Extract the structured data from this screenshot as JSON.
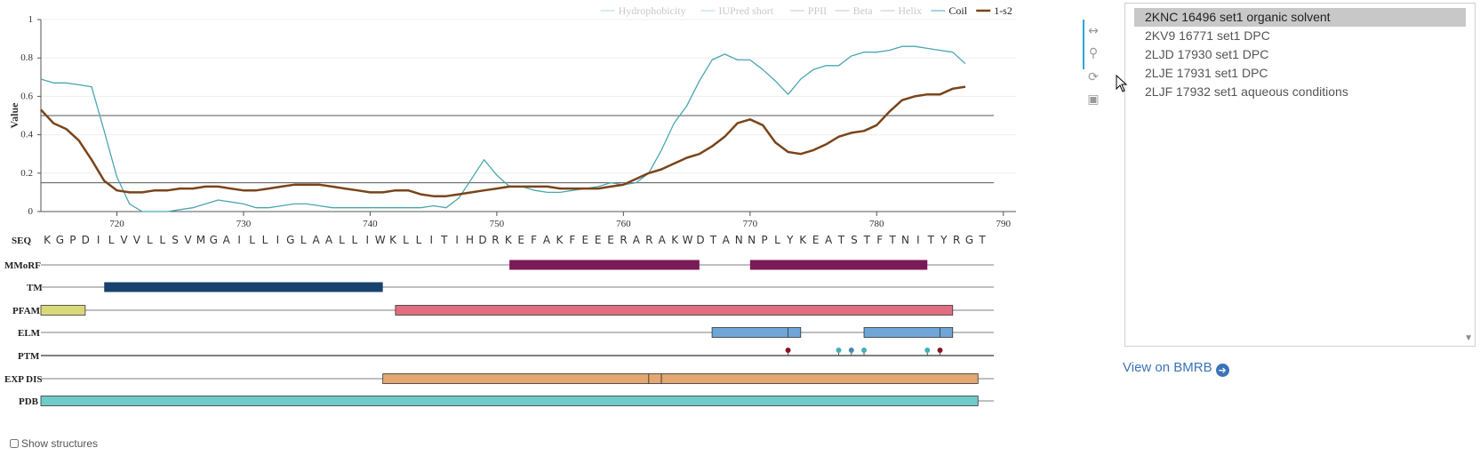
{
  "chart_data": {
    "type": "line",
    "xlabel": "",
    "ylabel": "Value",
    "xlim": [
      714,
      791
    ],
    "ylim": [
      0,
      1
    ],
    "x_ticks": [
      720,
      730,
      740,
      750,
      760,
      770,
      780,
      790
    ],
    "y_ticks": [
      0,
      0.2,
      0.4,
      0.6,
      0.8,
      1
    ],
    "grid": true,
    "legend_position": "top-right",
    "legend": [
      {
        "name": "Hydrophobicity",
        "active": false,
        "color": "#b0d8e4"
      },
      {
        "name": "IUPred short",
        "active": false,
        "color": "#b0d8e4"
      },
      {
        "name": "PPII",
        "active": false,
        "color": "#c9c9c9"
      },
      {
        "name": "Beta",
        "active": false,
        "color": "#c9c9c9"
      },
      {
        "name": "Helix",
        "active": false,
        "color": "#c9c9c9"
      },
      {
        "name": "Coil",
        "active": true,
        "color": "#4aa6b0"
      },
      {
        "name": "1-s2",
        "active": true,
        "color": "#7a4419"
      }
    ],
    "thresholds": [
      0.5,
      0.15
    ],
    "series": [
      {
        "name": "Coil",
        "color": "#4aa6b0",
        "x": [
          714,
          715,
          716,
          717,
          718,
          719,
          720,
          721,
          722,
          723,
          724,
          725,
          726,
          727,
          728,
          729,
          730,
          731,
          732,
          733,
          734,
          735,
          736,
          737,
          738,
          739,
          740,
          741,
          742,
          743,
          744,
          745,
          746,
          747,
          748,
          749,
          750,
          751,
          752,
          753,
          754,
          755,
          756,
          757,
          758,
          759,
          760,
          761,
          762,
          763,
          764,
          765,
          766,
          767,
          768,
          769,
          770,
          771,
          772,
          773,
          774,
          775,
          776,
          777,
          778,
          779,
          780,
          781,
          782,
          783,
          784,
          785,
          786,
          787
        ],
        "y": [
          0.69,
          0.67,
          0.67,
          0.66,
          0.65,
          0.42,
          0.18,
          0.04,
          0.0,
          0.0,
          0.0,
          0.01,
          0.02,
          0.04,
          0.06,
          0.05,
          0.04,
          0.02,
          0.02,
          0.03,
          0.04,
          0.04,
          0.03,
          0.02,
          0.02,
          0.02,
          0.02,
          0.02,
          0.02,
          0.02,
          0.02,
          0.03,
          0.02,
          0.07,
          0.17,
          0.27,
          0.19,
          0.13,
          0.13,
          0.11,
          0.1,
          0.1,
          0.11,
          0.12,
          0.13,
          0.15,
          0.14,
          0.15,
          0.2,
          0.32,
          0.46,
          0.55,
          0.68,
          0.79,
          0.82,
          0.79,
          0.79,
          0.74,
          0.68,
          0.61,
          0.69,
          0.74,
          0.76,
          0.76,
          0.81,
          0.83,
          0.83,
          0.84,
          0.86,
          0.86,
          0.85,
          0.84,
          0.83,
          0.77
        ]
      },
      {
        "name": "1-s2",
        "color": "#7a4419",
        "x": [
          714,
          715,
          716,
          717,
          718,
          719,
          720,
          721,
          722,
          723,
          724,
          725,
          726,
          727,
          728,
          729,
          730,
          731,
          732,
          733,
          734,
          735,
          736,
          737,
          738,
          739,
          740,
          741,
          742,
          743,
          744,
          745,
          746,
          747,
          748,
          749,
          750,
          751,
          752,
          753,
          754,
          755,
          756,
          757,
          758,
          759,
          760,
          761,
          762,
          763,
          764,
          765,
          766,
          767,
          768,
          769,
          770,
          771,
          772,
          773,
          774,
          775,
          776,
          777,
          778,
          779,
          780,
          781,
          782,
          783,
          784,
          785,
          786,
          787
        ],
        "y": [
          0.53,
          0.46,
          0.43,
          0.37,
          0.27,
          0.16,
          0.11,
          0.1,
          0.1,
          0.11,
          0.11,
          0.12,
          0.12,
          0.13,
          0.13,
          0.12,
          0.11,
          0.11,
          0.12,
          0.13,
          0.14,
          0.14,
          0.14,
          0.13,
          0.12,
          0.11,
          0.1,
          0.1,
          0.11,
          0.11,
          0.09,
          0.08,
          0.08,
          0.09,
          0.1,
          0.11,
          0.12,
          0.13,
          0.13,
          0.13,
          0.13,
          0.12,
          0.12,
          0.12,
          0.12,
          0.13,
          0.14,
          0.17,
          0.2,
          0.22,
          0.25,
          0.28,
          0.3,
          0.34,
          0.39,
          0.46,
          0.48,
          0.45,
          0.36,
          0.31,
          0.3,
          0.32,
          0.35,
          0.39,
          0.41,
          0.42,
          0.45,
          0.52,
          0.58,
          0.6,
          0.61,
          0.61,
          0.64,
          0.65
        ]
      }
    ],
    "sequence_label": "SEQ",
    "sequence": [
      "K",
      "G",
      "P",
      "D",
      "I",
      "L",
      "V",
      "V",
      "L",
      "L",
      "S",
      "V",
      "M",
      "G",
      "A",
      "I",
      "L",
      "L",
      "I",
      "G",
      "L",
      "A",
      "A",
      "L",
      "L",
      "I",
      "W",
      "K",
      "L",
      "L",
      "I",
      "T",
      "I",
      "H",
      "D",
      "R",
      "K",
      "E",
      "F",
      "A",
      "K",
      "F",
      "E",
      "E",
      "E",
      "R",
      "A",
      "R",
      "A",
      "K",
      "W",
      "D",
      "T",
      "A",
      "N",
      "N",
      "P",
      "L",
      "Y",
      "K",
      "E",
      "A",
      "T",
      "S",
      "T",
      "F",
      "T",
      "N",
      "I",
      "T",
      "Y",
      "R",
      "G",
      "T"
    ],
    "tracks": [
      {
        "label": "MMoRF",
        "features": [
          {
            "start": 751,
            "end": 766,
            "color": "#7a1a56"
          },
          {
            "start": 770,
            "end": 784,
            "color": "#7a1a56"
          }
        ]
      },
      {
        "label": "TM",
        "features": [
          {
            "start": 719,
            "end": 741,
            "color": "#17426e"
          }
        ]
      },
      {
        "label": "PFAM",
        "features": [
          {
            "start": 714,
            "end": 717.5,
            "color": "#d8d97a"
          },
          {
            "start": 742,
            "end": 786,
            "color": "#e16e80"
          }
        ]
      },
      {
        "label": "ELM",
        "features": [
          {
            "start": 767,
            "end": 774,
            "color": "#6fa6d8",
            "divider": 773
          },
          {
            "start": 779,
            "end": 786,
            "color": "#6fa6d8",
            "divider": 785
          }
        ]
      },
      {
        "label": "PTM",
        "pins": [
          {
            "pos": 773,
            "color": "#8a1326"
          },
          {
            "pos": 777,
            "color": "#43b0b8"
          },
          {
            "pos": 778,
            "color": "#4a86b0"
          },
          {
            "pos": 779,
            "color": "#43b0b8"
          },
          {
            "pos": 784,
            "color": "#43b0b8"
          },
          {
            "pos": 785,
            "color": "#8a1326"
          }
        ]
      },
      {
        "label": "EXP DIS",
        "features": [
          {
            "start": 741,
            "end": 762,
            "color": "#e3a773"
          },
          {
            "start": 762,
            "end": 763,
            "color": "#e3a773"
          },
          {
            "start": 763,
            "end": 788,
            "color": "#e3a773"
          }
        ]
      },
      {
        "label": "PDB",
        "features": [
          {
            "start": 714,
            "end": 788,
            "color": "#6fcbc8"
          }
        ]
      }
    ]
  },
  "tools": [
    {
      "name": "zoom-horizontal-icon",
      "glyph": "↔"
    },
    {
      "name": "zoom-region-icon",
      "glyph": "⚲"
    },
    {
      "name": "reset-icon",
      "glyph": "⟳"
    },
    {
      "name": "save-icon",
      "glyph": "▣"
    }
  ],
  "entries": [
    "2KNC 16496 set1 organic solvent",
    "2KV9 16771 set1 DPC",
    "2LJD 17930 set1 DPC",
    "2LJE 17931 set1 DPC",
    "2LJF 17932 set1 aqueous conditions"
  ],
  "selected_entry_index": 0,
  "view_link": "View on BMRB",
  "show_structures_label": "Show structures"
}
